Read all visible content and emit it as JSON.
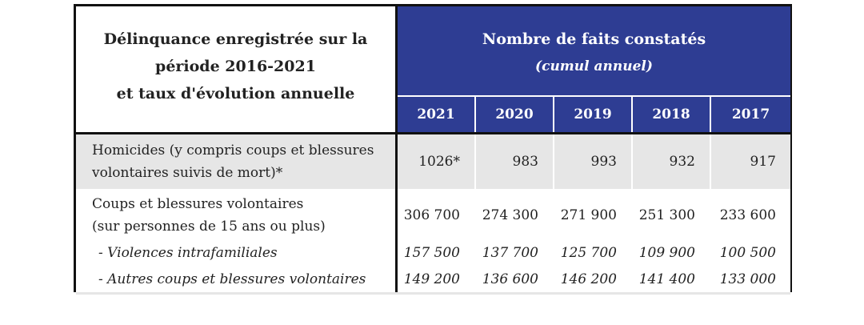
{
  "table": {
    "title_lines": [
      "Délinquance enregistrée sur la",
      "période 2016-2021",
      "et taux d'évolution annuelle"
    ],
    "header": "Nombre de faits constatés",
    "subheader": "(cumul annuel)",
    "years": [
      "2021",
      "2020",
      "2019",
      "2018",
      "2017"
    ],
    "rows": [
      {
        "label_lines": [
          "Homicides (y compris coups et blessures",
          "volontaires suivis de mort)*"
        ],
        "values": [
          "1026*",
          "983",
          "993",
          "932",
          "917"
        ]
      },
      {
        "label_lines": [
          "Coups et blessures volontaires",
          "(sur personnes de 15 ans ou plus)"
        ],
        "values": [
          "306 700",
          "274 300",
          "271 900",
          "251 300",
          "233 600"
        ]
      },
      {
        "label_lines": [
          "- Violences intrafamiliales"
        ],
        "values": [
          "157 500",
          "137 700",
          "125 700",
          "109 900",
          "100 500"
        ]
      },
      {
        "label_lines": [
          "- Autres coups et blessures volontaires"
        ],
        "values": [
          "149 200",
          "136 600",
          "146 200",
          "141 400",
          "133 000"
        ]
      }
    ]
  },
  "colors": {
    "header_bg": "#2e3d93",
    "shaded_row": "#e6e6e6"
  }
}
